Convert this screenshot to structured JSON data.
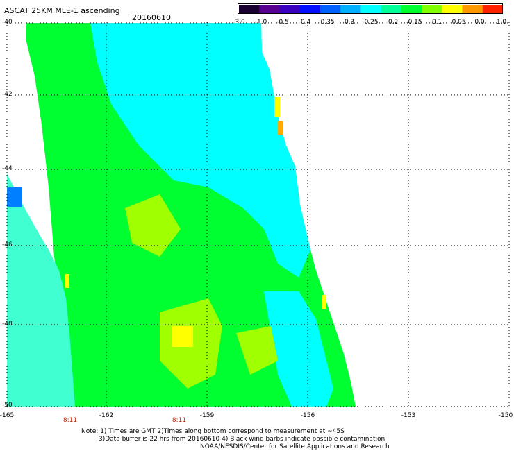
{
  "header": {
    "title": "ASCAT 25KM MLE-1 ascending",
    "date": "20160610"
  },
  "colorbar": {
    "labels": [
      "-3.0",
      "-1.0",
      "-0.5",
      "-0.4",
      "-0.35",
      "-0.3",
      "-0.25",
      "-0.2",
      "-0.15",
      "-0.1",
      "-0.05",
      "0.0",
      "1.0"
    ],
    "colors": [
      "#1a0030",
      "#5a0090",
      "#3a00c0",
      "#0010ff",
      "#0060ff",
      "#00b0ff",
      "#00ffff",
      "#00ff99",
      "#00ff30",
      "#80ff00",
      "#ffff00",
      "#ff9900",
      "#ff2000"
    ]
  },
  "map": {
    "lat_labels": [
      "-40",
      "-42",
      "-44",
      "-46",
      "-48",
      "-50"
    ],
    "lon_labels": [
      "-165",
      "-162",
      "-159",
      "-156",
      "-153",
      "-150"
    ],
    "time_labels": [
      "8:11",
      "8:11"
    ]
  },
  "notes": {
    "line1": "Note: 1) Times are GMT 2)Times along bottom correspond to measurement at ~45S",
    "line2": "3)Data buffer is 22 hrs from 20160610 4) Black wind barbs indicate possible contamination",
    "line3": "NOAA/NESDIS/Center for Satellite Applications and Research"
  },
  "colors": {
    "cyan": "#00ffff",
    "light_cyan": "#40ffd0",
    "green": "#00ff30",
    "yellow_green": "#a0ff00",
    "yellow": "#ffff00",
    "orange": "#ffaa00",
    "blue": "#0080ff"
  }
}
